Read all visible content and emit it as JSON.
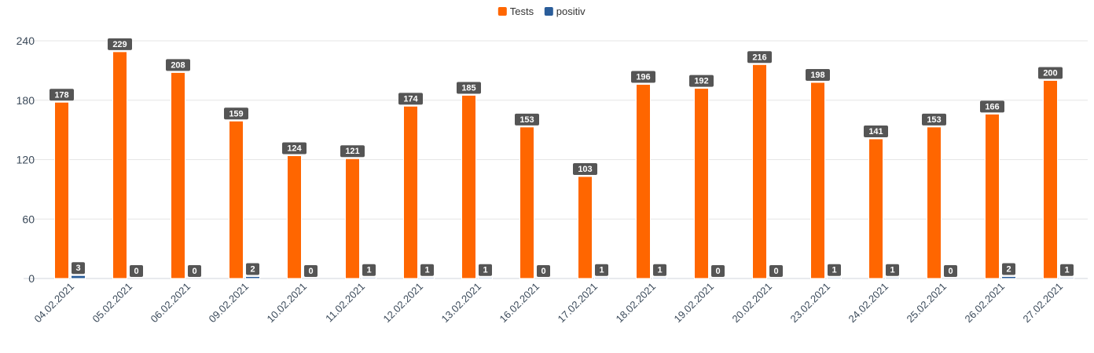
{
  "chart_data": {
    "type": "bar",
    "categories": [
      "04.02.2021",
      "05.02.2021",
      "06.02.2021",
      "09.02.2021",
      "10.02.2021",
      "11.02.2021",
      "12.02.2021",
      "13.02.2021",
      "16.02.2021",
      "17.02.2021",
      "18.02.2021",
      "19.02.2021",
      "20.02.2021",
      "23.02.2021",
      "24.02.2021",
      "25.02.2021",
      "26.02.2021",
      "27.02.2021"
    ],
    "series": [
      {
        "name": "Tests",
        "color": "#ff6600",
        "values": [
          178,
          229,
          208,
          159,
          124,
          121,
          174,
          185,
          153,
          103,
          196,
          192,
          216,
          198,
          141,
          153,
          166,
          200
        ]
      },
      {
        "name": "positiv",
        "color": "#2a5d9a",
        "values": [
          3,
          0,
          0,
          2,
          0,
          1,
          1,
          1,
          0,
          1,
          1,
          0,
          0,
          1,
          1,
          0,
          2,
          1
        ]
      }
    ],
    "yticks": [
      0,
      60,
      120,
      180,
      240
    ],
    "ylim": [
      0,
      240
    ],
    "grid": true,
    "legend": "top-center",
    "data_labels": true
  }
}
